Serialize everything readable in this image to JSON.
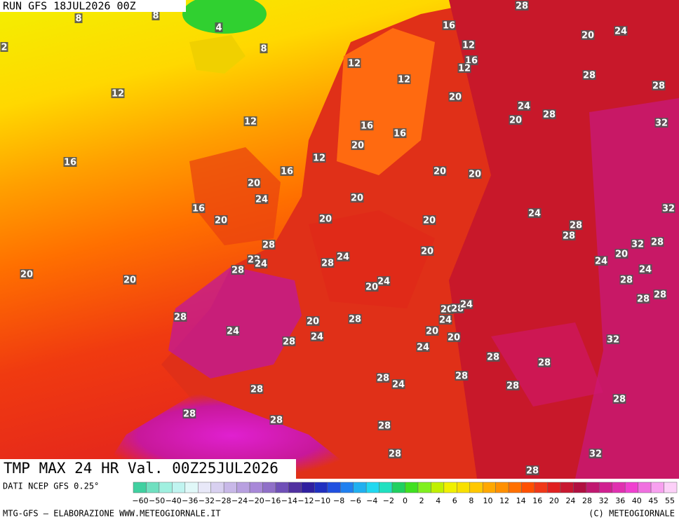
{
  "header": {
    "run": "RUN GFS 18JUL2026 00Z"
  },
  "map": {
    "labels": [
      "28",
      "16",
      "20",
      "24",
      "12",
      "16",
      "12",
      "12",
      "12",
      "28",
      "28",
      "12",
      "20",
      "24",
      "28",
      "20",
      "32",
      "12",
      "16",
      "16",
      "20",
      "12",
      "16",
      "16",
      "20",
      "20",
      "20",
      "24",
      "20",
      "16",
      "32",
      "24",
      "20",
      "20",
      "20",
      "28",
      "28",
      "32",
      "28",
      "28",
      "20",
      "24",
      "20",
      "24",
      "22",
      "24",
      "28",
      "28",
      "24",
      "20",
      "20",
      "28",
      "24",
      "20",
      "28",
      "28",
      "20",
      "28",
      "24",
      "24",
      "28",
      "24",
      "20",
      "24",
      "28",
      "20",
      "20",
      "28",
      "32",
      "24",
      "28",
      "28",
      "28",
      "24",
      "28",
      "28",
      "28",
      "28",
      "28",
      "28",
      "28",
      "32",
      "28",
      "28",
      "2",
      "8",
      "8",
      "4",
      "8"
    ]
  },
  "footer": {
    "validity": "TMP MAX 24 HR Val. 00Z25JUL2026",
    "source": "DATI NCEP GFS 0.25°",
    "credit": "MTG-GFS — ELABORAZIONE WWW.METEOGIORNALE.IT",
    "copyright": "(C) METEOGIORNALE",
    "legend": [
      "−60",
      "−50",
      "−40",
      "−36",
      "−32",
      "−28",
      "−24",
      "−20",
      "−16",
      "−14",
      "−12",
      "−10",
      "−8",
      "−6",
      "−4",
      "−2",
      "0",
      "2",
      "4",
      "6",
      "8",
      "10",
      "12",
      "14",
      "16",
      "20",
      "24",
      "28",
      "32",
      "36",
      "40",
      "45",
      "55"
    ]
  }
}
